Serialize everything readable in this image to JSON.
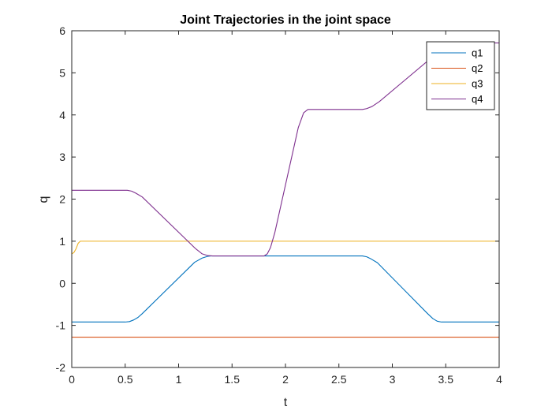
{
  "chart_data": {
    "type": "line",
    "title": "Joint Trajectories in the joint space",
    "xlabel": "t",
    "ylabel": "q",
    "xlim": [
      0,
      4
    ],
    "ylim": [
      -2,
      6
    ],
    "xticks": [
      0,
      0.5,
      1,
      1.5,
      2,
      2.5,
      3,
      3.5,
      4
    ],
    "xtick_labels": [
      "0",
      "0.5",
      "1",
      "1.5",
      "2",
      "2.5",
      "3",
      "3.5",
      "4"
    ],
    "yticks": [
      -2,
      -1,
      0,
      1,
      2,
      3,
      4,
      5,
      6
    ],
    "ytick_labels": [
      "-2",
      "-1",
      "0",
      "1",
      "2",
      "3",
      "4",
      "5",
      "6"
    ],
    "grid": false,
    "legend_position": "top-right",
    "series": [
      {
        "name": "q1",
        "color": "#0072BD",
        "points": [
          [
            0,
            -0.92
          ],
          [
            0.5,
            -0.92
          ],
          [
            0.54,
            -0.91
          ],
          [
            0.58,
            -0.87
          ],
          [
            0.62,
            -0.81
          ],
          [
            0.66,
            -0.72
          ],
          [
            1.15,
            0.5
          ],
          [
            1.22,
            0.6
          ],
          [
            1.27,
            0.64
          ],
          [
            1.3,
            0.65
          ],
          [
            2.72,
            0.65
          ],
          [
            2.76,
            0.63
          ],
          [
            2.8,
            0.58
          ],
          [
            2.86,
            0.49
          ],
          [
            3.33,
            -0.72
          ],
          [
            3.38,
            -0.84
          ],
          [
            3.42,
            -0.9
          ],
          [
            3.46,
            -0.92
          ],
          [
            4,
            -0.92
          ]
        ]
      },
      {
        "name": "q2",
        "color": "#D95319",
        "points": [
          [
            0,
            -1.28
          ],
          [
            4,
            -1.28
          ]
        ]
      },
      {
        "name": "q3",
        "color": "#EDB120",
        "points": [
          [
            0,
            0.7
          ],
          [
            0.02,
            0.73
          ],
          [
            0.04,
            0.82
          ],
          [
            0.06,
            0.95
          ],
          [
            0.08,
            1.0
          ],
          [
            4,
            1.0
          ]
        ]
      },
      {
        "name": "q4",
        "color": "#7E2F8E",
        "points": [
          [
            0,
            2.21
          ],
          [
            0.52,
            2.21
          ],
          [
            0.56,
            2.19
          ],
          [
            0.6,
            2.14
          ],
          [
            0.66,
            2.05
          ],
          [
            1.16,
            0.82
          ],
          [
            1.22,
            0.7
          ],
          [
            1.27,
            0.66
          ],
          [
            1.32,
            0.65
          ],
          [
            1.8,
            0.65
          ],
          [
            1.83,
            0.7
          ],
          [
            1.86,
            0.85
          ],
          [
            1.9,
            1.2
          ],
          [
            2.12,
            3.7
          ],
          [
            2.17,
            4.05
          ],
          [
            2.21,
            4.13
          ],
          [
            2.72,
            4.13
          ],
          [
            2.76,
            4.15
          ],
          [
            2.81,
            4.2
          ],
          [
            2.88,
            4.32
          ],
          [
            3.48,
            5.6
          ],
          [
            3.52,
            5.68
          ],
          [
            3.56,
            5.71
          ],
          [
            4,
            5.71
          ]
        ]
      }
    ]
  }
}
